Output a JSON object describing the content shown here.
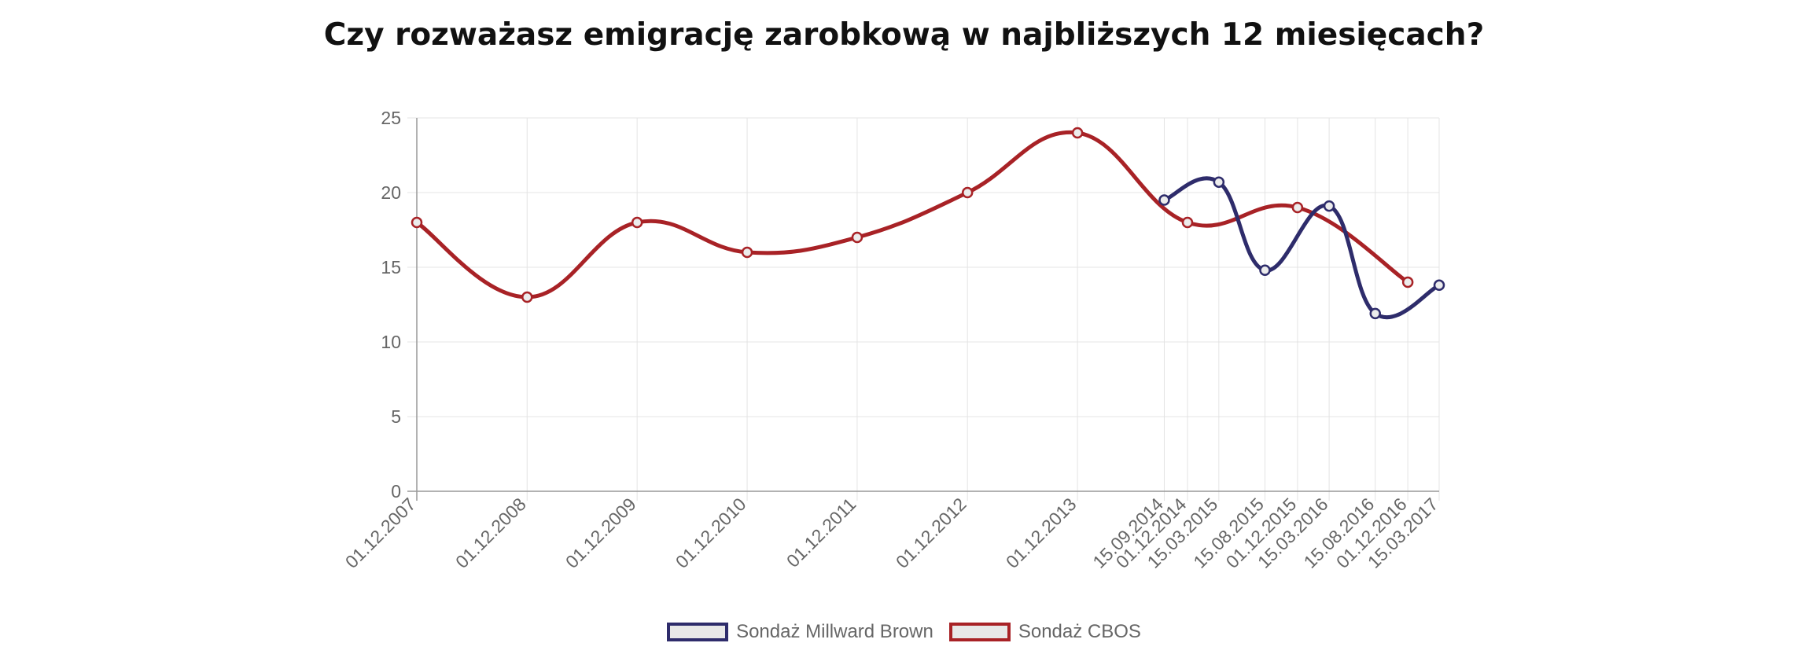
{
  "chart_data": {
    "type": "line",
    "title": "Czy rozważasz emigrację zarobkową w najbliższych 12 miesięcach?",
    "xlabel": "",
    "ylabel": "",
    "ylim": [
      0,
      25
    ],
    "yticks": [
      0,
      5,
      10,
      15,
      20,
      25
    ],
    "grid": true,
    "legend_position": "bottom",
    "x": [
      "01.12.2007",
      "01.12.2008",
      "01.12.2009",
      "01.12.2010",
      "01.12.2011",
      "01.12.2012",
      "01.12.2013",
      "15.09.2014",
      "01.12.2014",
      "15.03.2015",
      "15.08.2015",
      "01.12.2015",
      "15.03.2016",
      "15.08.2016",
      "01.12.2016",
      "15.03.2017"
    ],
    "series": [
      {
        "name": "Sondaż Millward Brown",
        "color": "#2e2c6b",
        "points": [
          {
            "x": "15.09.2014",
            "y": 19.5
          },
          {
            "x": "15.03.2015",
            "y": 20.7
          },
          {
            "x": "15.08.2015",
            "y": 14.8
          },
          {
            "x": "15.03.2016",
            "y": 19.1
          },
          {
            "x": "15.08.2016",
            "y": 11.9
          },
          {
            "x": "15.03.2017",
            "y": 13.8
          }
        ]
      },
      {
        "name": "Sondaż CBOS",
        "color": "#a82226",
        "points": [
          {
            "x": "01.12.2007",
            "y": 18
          },
          {
            "x": "01.12.2008",
            "y": 13
          },
          {
            "x": "01.12.2009",
            "y": 18
          },
          {
            "x": "01.12.2010",
            "y": 16
          },
          {
            "x": "01.12.2011",
            "y": 17
          },
          {
            "x": "01.12.2012",
            "y": 20
          },
          {
            "x": "01.12.2013",
            "y": 24
          },
          {
            "x": "01.12.2014",
            "y": 18
          },
          {
            "x": "01.12.2015",
            "y": 19
          },
          {
            "x": "01.12.2016",
            "y": 14
          }
        ]
      }
    ]
  }
}
